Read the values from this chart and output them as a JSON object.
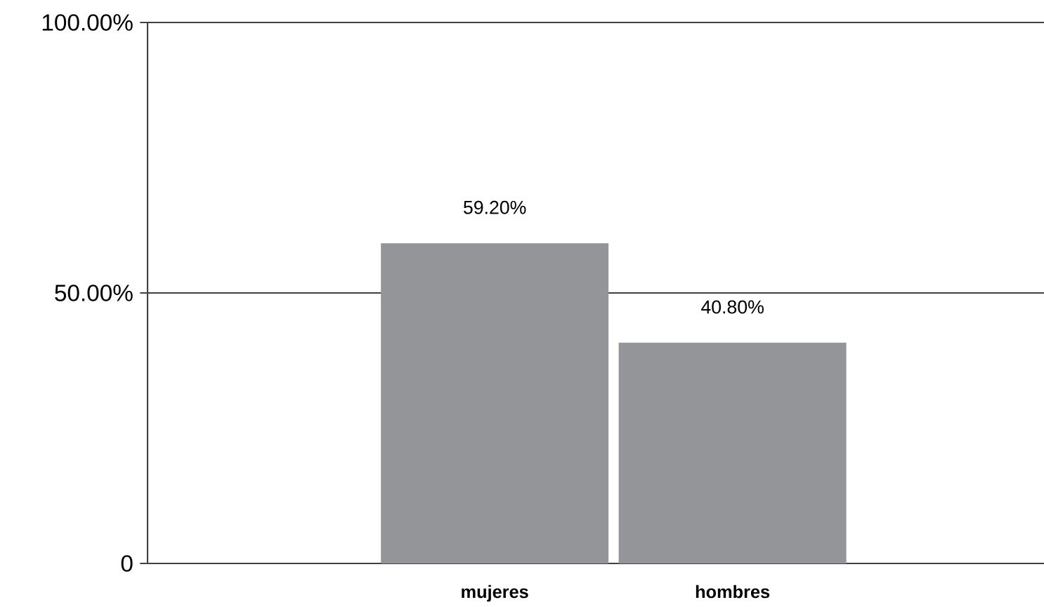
{
  "chart_data": {
    "type": "bar",
    "categories": [
      "mujeres",
      "hombres"
    ],
    "values": [
      59.2,
      40.8
    ],
    "color": "#939598",
    "value_labels": [
      "59.20%",
      "40.80%"
    ],
    "ylim": [
      0,
      100
    ],
    "yticks": [
      {
        "value": 0,
        "label": "0"
      },
      {
        "value": 50,
        "label": "50.00%"
      },
      {
        "value": 100,
        "label": "100.00%"
      }
    ],
    "grid": "y"
  }
}
